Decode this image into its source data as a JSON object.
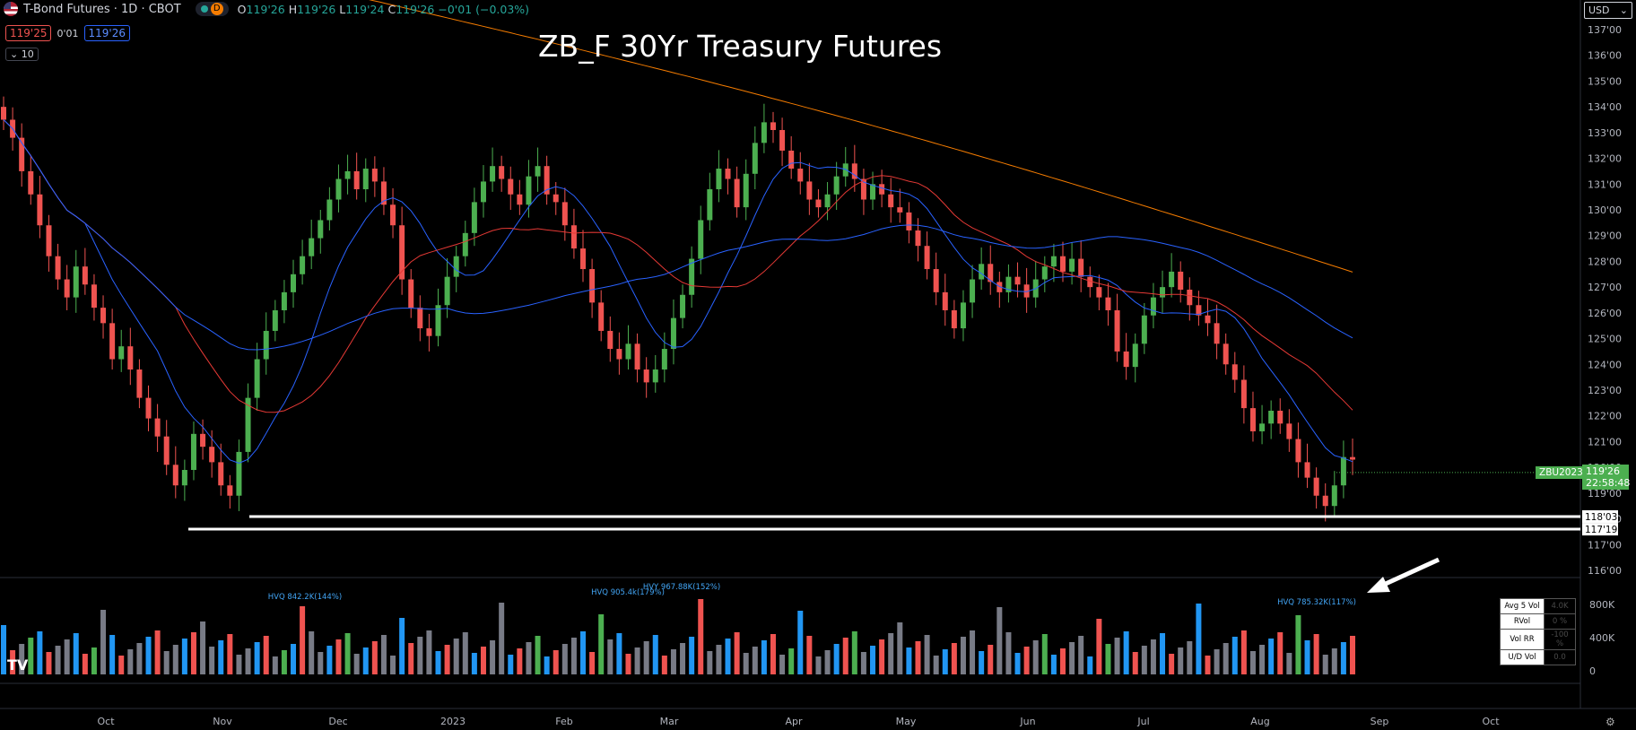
{
  "header": {
    "symbol": "T-Bond Futures · 1D · CBOT",
    "interval_badge": "D",
    "open_label": "O",
    "open": "119'26",
    "high_label": "H",
    "high": "119'26",
    "low_label": "L",
    "low": "119'24",
    "close_label": "C",
    "close": "119'26",
    "change": "−0'01 (−0.03%)",
    "bid": "119'25",
    "spread": "0'01",
    "ask": "119'26",
    "indicators_collapsed": "10"
  },
  "title": "ZB_F 30Yr Treasury Futures",
  "currency": "USD",
  "price_axis": {
    "labels": [
      "137'00",
      "136'00",
      "135'00",
      "134'00",
      "133'00",
      "132'00",
      "131'00",
      "130'00",
      "129'00",
      "128'00",
      "127'00",
      "126'00",
      "125'00",
      "124'00",
      "123'00",
      "122'00",
      "121'00",
      "120'00",
      "119'00",
      "118'00",
      "117'00",
      "116'00"
    ],
    "symbol_tag": "ZBU2023",
    "last_price": "119'26",
    "countdown": "22:58:48",
    "level_1": "118'03",
    "level_2": "117'19"
  },
  "volume_axis": [
    "800K",
    "400K",
    "0"
  ],
  "time_axis": [
    "Oct",
    "Nov",
    "Dec",
    "2023",
    "Feb",
    "Mar",
    "Apr",
    "May",
    "Jun",
    "Jul",
    "Aug",
    "Sep",
    "Oct"
  ],
  "volume_annotations": [
    "HVQ 842.2K(144%)",
    "HVQ 905.4k(179%)",
    "HVY 967.88K(152%)",
    "HVQ 785.32K(117%)"
  ],
  "volume_table": {
    "rows": [
      {
        "label": "Avg 5 Vol",
        "value": "4.0K"
      },
      {
        "label": "RVol",
        "value": "0 %"
      },
      {
        "label": "Vol RR",
        "value": "-100 %"
      },
      {
        "label": "U/D Vol",
        "value": "0.0"
      }
    ]
  },
  "colors": {
    "up": "#4caf50",
    "down": "#ef5350",
    "vol_up": "#2196f3",
    "vol_down": "#ef5350",
    "vol_neutral": "#787b86",
    "ma_fast": "#2962ff",
    "ma_mid": "#e53935",
    "ma_slow": "#f57c00"
  },
  "chart_data": {
    "type": "candlestick",
    "series": [
      {
        "name": "candles",
        "closes": [
          133.5,
          132.8,
          131.5,
          130.6,
          129.4,
          128.2,
          127.3,
          126.6,
          127.8,
          127.1,
          126.2,
          125.6,
          124.2,
          124.7,
          123.8,
          122.7,
          121.9,
          121.2,
          120.1,
          119.3,
          119.9,
          121.3,
          120.8,
          120.2,
          119.3,
          118.9,
          120.6,
          122.7,
          124.2,
          125.3,
          126.1,
          126.8,
          127.5,
          128.2,
          128.9,
          129.6,
          130.4,
          131.2,
          131.5,
          130.8,
          131.6,
          131.1,
          130.2,
          129.4,
          127.3,
          126.2,
          125.4,
          125.1,
          126.3,
          127.4,
          128.2,
          129.1,
          130.3,
          131.1,
          131.7,
          131.2,
          130.6,
          130.2,
          131.3,
          131.7,
          130.6,
          130.3,
          129.4,
          128.5,
          127.7,
          126.4,
          125.3,
          124.6,
          124.2,
          124.8,
          123.8,
          123.3,
          123.8,
          124.6,
          125.8,
          126.7,
          128.1,
          129.6,
          130.8,
          131.6,
          131.2,
          130.1,
          131.4,
          132.6,
          133.4,
          133.1,
          132.3,
          131.6,
          131.1,
          130.4,
          130.1,
          130.6,
          131.3,
          131.8,
          131.2,
          130.4,
          131.0,
          130.6,
          130.1,
          129.9,
          129.2,
          128.6,
          127.7,
          126.8,
          126.1,
          125.4,
          126.4,
          127.3,
          127.9,
          127.2,
          126.8,
          127.4,
          127.1,
          126.6,
          127.3,
          127.8,
          128.2,
          127.6,
          128.1,
          127.4,
          127.0,
          126.6,
          126.1,
          124.5,
          123.9,
          124.8,
          125.9,
          126.6,
          127.0,
          127.6,
          126.9,
          126.3,
          125.9,
          125.6,
          124.8,
          124.0,
          123.4,
          122.3,
          121.4,
          121.7,
          122.2,
          121.7,
          121.1,
          120.2,
          119.6,
          118.9,
          118.5,
          119.3,
          120.4,
          120.3
        ],
        "note": "daily closes approximated"
      },
      {
        "name": "volume",
        "approx": true
      }
    ],
    "ylim": [
      116,
      137.5
    ]
  }
}
